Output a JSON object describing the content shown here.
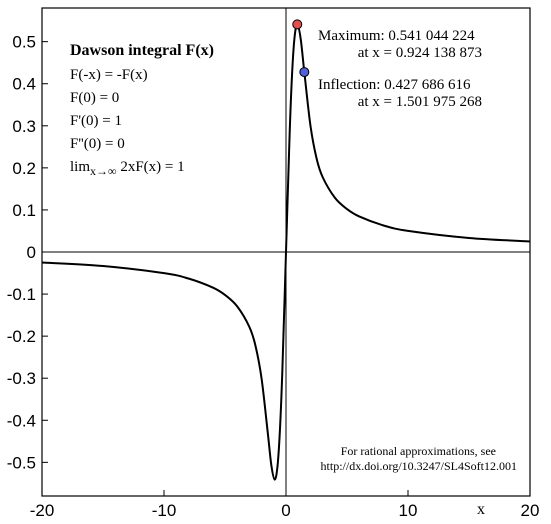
{
  "chart_data": {
    "type": "line",
    "title": "Dawson integral F(x)",
    "xlabel": "x",
    "ylabel": "",
    "xlim": [
      -20,
      20
    ],
    "ylim": [
      -0.58,
      0.58
    ],
    "xticks": [
      -20,
      -10,
      0,
      10,
      20
    ],
    "yticks": [
      -0.5,
      -0.4,
      -0.3,
      -0.2,
      -0.1,
      0,
      0.1,
      0.2,
      0.3,
      0.4,
      0.5
    ],
    "xtick_labels": [
      "-20",
      "-10",
      "0",
      "10",
      "20"
    ],
    "ytick_labels": [
      "-0.5",
      "-0.4",
      "-0.3",
      "-0.2",
      "-0.1",
      "0",
      "0.1",
      "0.2",
      "0.3",
      "0.4",
      "0.5"
    ],
    "grid": false,
    "series": [
      {
        "name": "",
        "color": "#000000",
        "x": [
          -20,
          -15,
          -10,
          -8,
          -6,
          -5,
          -4,
          -3,
          -2.5,
          -2,
          -1.5,
          -1.2,
          -0.924,
          -0.7,
          -0.5,
          -0.3,
          0,
          0.3,
          0.5,
          0.7,
          0.924,
          1.2,
          1.5,
          2,
          2.5,
          3,
          4,
          5,
          6,
          8,
          10,
          15,
          20
        ],
        "y": [
          -0.02503,
          -0.03339,
          -0.05025,
          -0.06304,
          -0.08454,
          -0.1021,
          -0.1293,
          -0.1783,
          -0.2231,
          -0.3013,
          -0.4282,
          -0.5073,
          -0.541,
          -0.51,
          -0.4244,
          -0.2825,
          0,
          0.2825,
          0.4244,
          0.51,
          0.541,
          0.5073,
          0.4282,
          0.3013,
          0.2231,
          0.1783,
          0.1293,
          0.1021,
          0.08454,
          0.06304,
          0.05025,
          0.03339,
          0.02503
        ]
      }
    ],
    "properties": {
      "heading": "Dawson integral F(x)",
      "items": [
        "F(-x) = -F(x)",
        "F(0) = 0",
        "F'(0) = 1",
        "F''(0) = 0"
      ],
      "limit_prefix": "lim",
      "limit_sub": "x→∞",
      "limit_rest": " 2xF(x) = 1"
    },
    "annotations": {
      "maximum": {
        "x": 0.924138873,
        "y": 0.541044224,
        "line1": "Maximum: 0.541 044 224",
        "line2": "at x = 0.924 138 873",
        "marker_color": "#e05050"
      },
      "inflection": {
        "x": 1.501975268,
        "y": 0.427686616,
        "line1": "Inflection: 0.427 686 616",
        "line2": "at x = 1.501 975 268",
        "marker_color": "#5060d8"
      },
      "reference": {
        "line1": "For rational approximations, see",
        "line2": "http://dx.doi.org/10.3247/SL4Soft12.001"
      }
    }
  }
}
